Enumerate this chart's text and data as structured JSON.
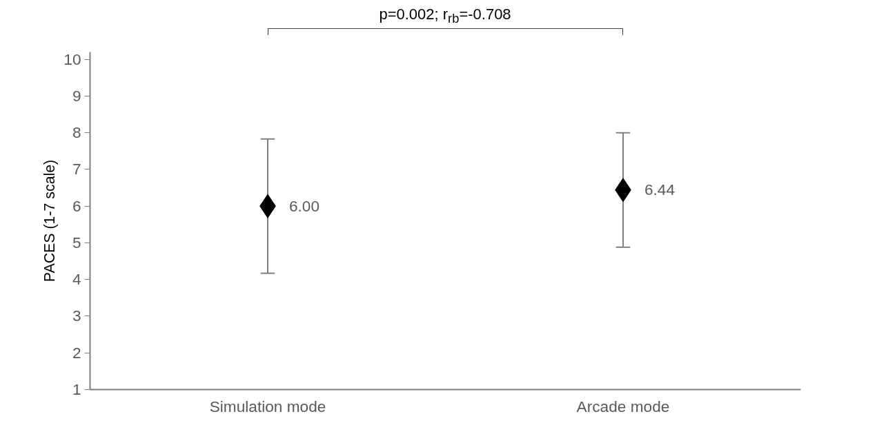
{
  "chart_data": {
    "type": "scatter",
    "ylabel": "PACES (1-7 scale)",
    "categories": [
      "Simulation mode",
      "Arcade mode"
    ],
    "series": [
      {
        "color": "#000000",
        "values": [
          6.0,
          6.44
        ],
        "errors": [
          1.83,
          1.56
        ],
        "value_labels": [
          "6.00",
          "6.44"
        ]
      }
    ],
    "marker": "diamond",
    "ylim": [
      1,
      10.2
    ],
    "yticks": [
      1,
      2,
      3,
      4,
      5,
      6,
      7,
      8,
      9,
      10
    ],
    "grid": false,
    "annotations": [
      "p=0.002; r$_{rb}$=-0.708"
    ]
  }
}
